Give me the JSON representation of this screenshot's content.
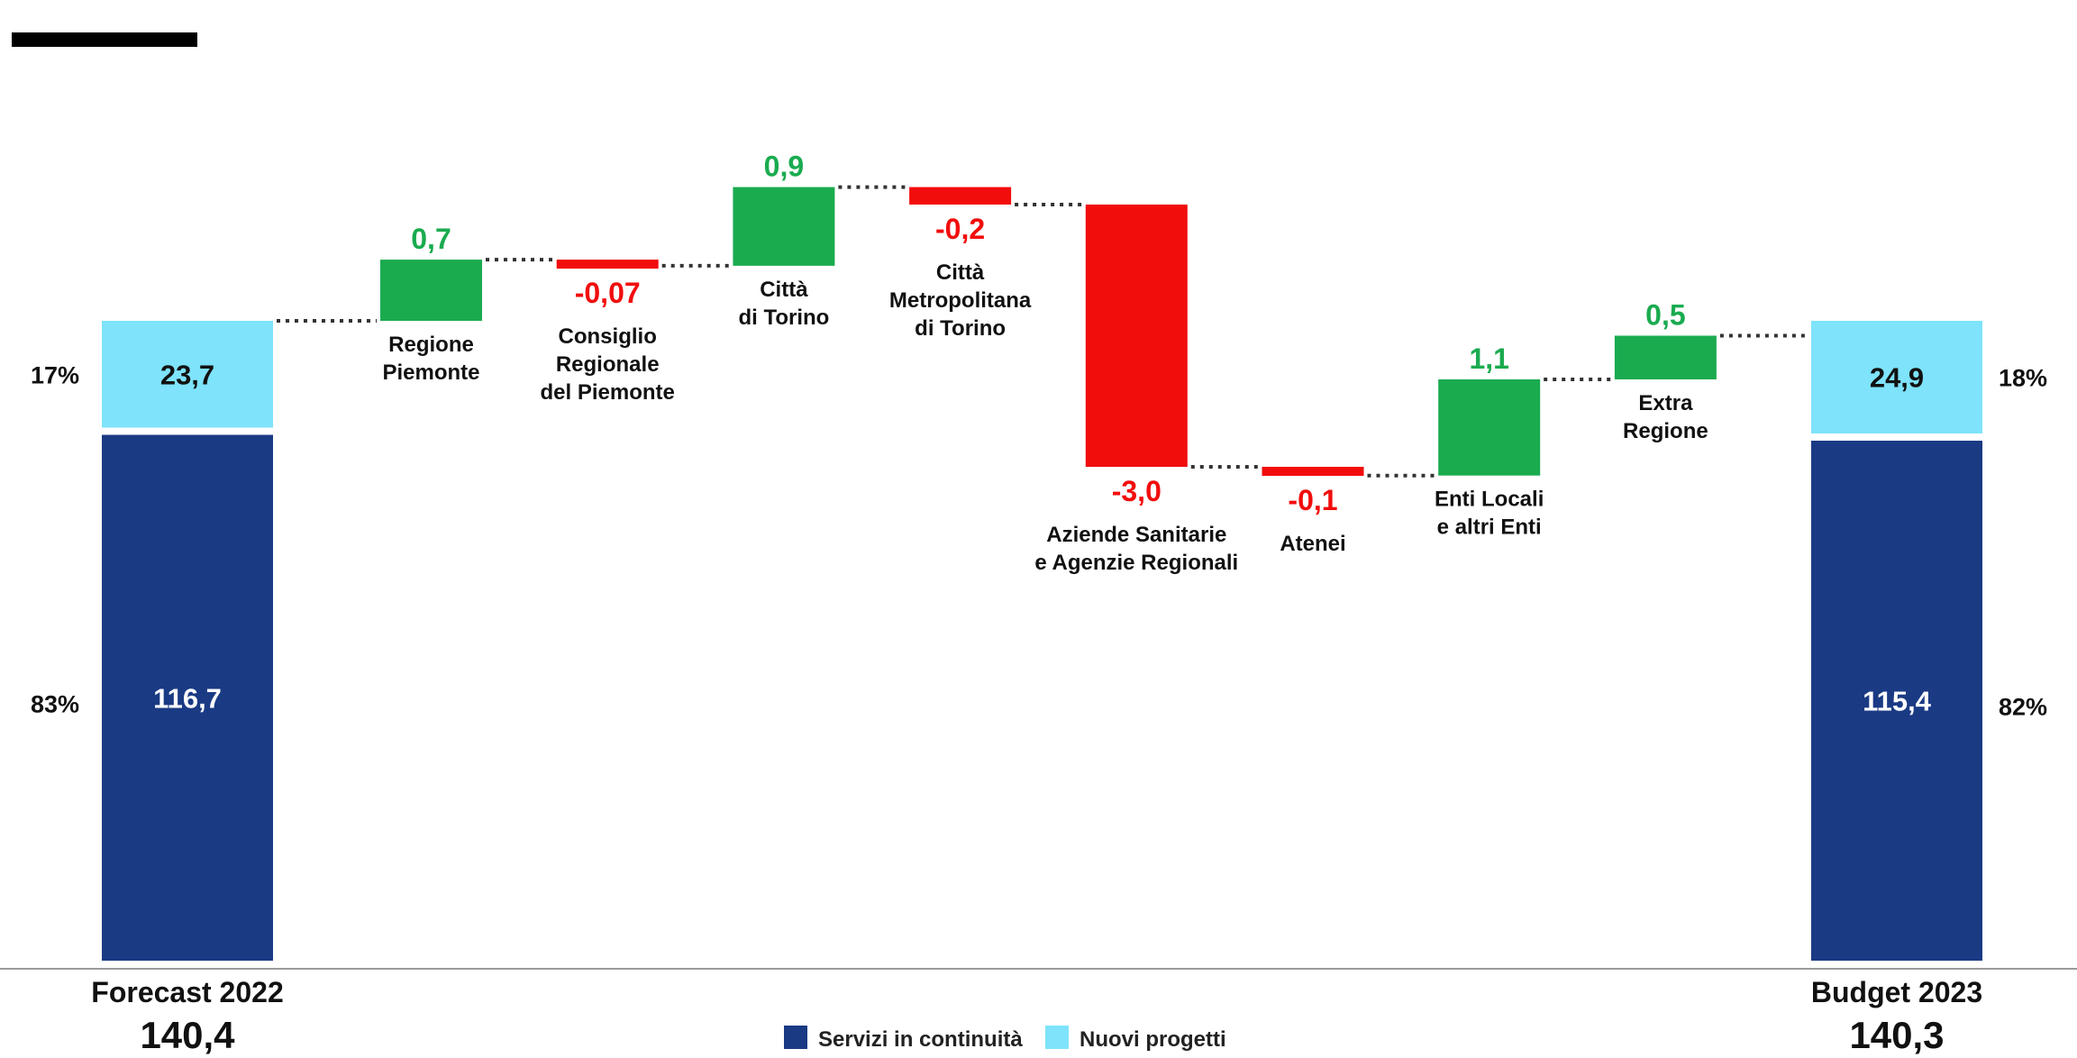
{
  "chart_data": {
    "type": "bar",
    "subtype": "waterfall",
    "start": {
      "label": "Forecast 2022",
      "total": "140,4",
      "segments": [
        {
          "series": "Servizi in continuità",
          "value": 116.7,
          "label": "116,7",
          "share": "83%"
        },
        {
          "series": "Nuovi progetti",
          "value": 23.7,
          "label": "23,7",
          "share": "17%"
        }
      ]
    },
    "steps": [
      {
        "name": [
          "Regione",
          "Piemonte"
        ],
        "value": 0.7,
        "label": "0,7"
      },
      {
        "name": [
          "Consiglio",
          "Regionale",
          "del Piemonte"
        ],
        "value": -0.07,
        "label": "-0,07"
      },
      {
        "name": [
          "Città",
          "di Torino"
        ],
        "value": 0.9,
        "label": "0,9"
      },
      {
        "name": [
          "Città",
          "Metropolitana",
          "di Torino"
        ],
        "value": -0.2,
        "label": "-0,2"
      },
      {
        "name": [
          "Aziende Sanitarie",
          "e Agenzie Regionali"
        ],
        "value": -3.0,
        "label": "-3,0"
      },
      {
        "name": [
          "Atenei"
        ],
        "value": -0.1,
        "label": "-0,1"
      },
      {
        "name": [
          "Enti Locali",
          "e altri Enti"
        ],
        "value": 1.1,
        "label": "1,1"
      },
      {
        "name": [
          "Extra",
          "Regione"
        ],
        "value": 0.5,
        "label": "0,5"
      }
    ],
    "end": {
      "label": "Budget 2023",
      "total": "140,3",
      "segments": [
        {
          "series": "Servizi in continuità",
          "value": 115.4,
          "label": "115,4",
          "share": "82%"
        },
        {
          "series": "Nuovi progetti",
          "value": 24.9,
          "label": "24,9",
          "share": "18%"
        }
      ]
    },
    "legend": [
      {
        "name": "Servizi in continuità",
        "color": "#1a3a84"
      },
      {
        "name": "Nuovi progetti",
        "color": "#7ee3fb"
      }
    ],
    "colors": {
      "continuita": "#1a3a84",
      "nuovi": "#7ee3fb",
      "increase": "#1aab4f",
      "decrease": "#f20d0d",
      "increase_text": "#1aab4f",
      "decrease_text": "#f20d0d"
    }
  }
}
